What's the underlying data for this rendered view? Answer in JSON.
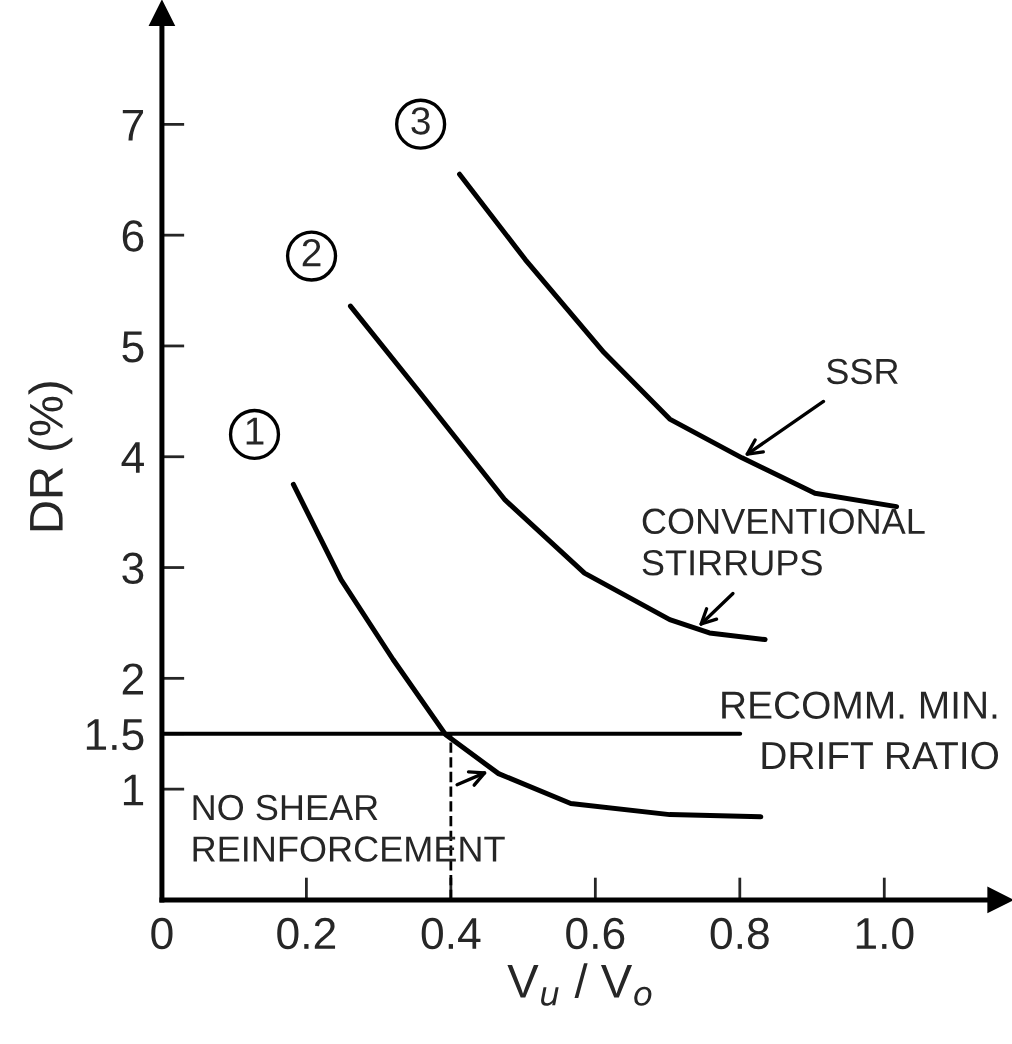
{
  "chart_data": {
    "type": "line",
    "xlabel": "V$_{u}$ / V$_{o}$",
    "ylabel": "DR (%)",
    "series": [
      {
        "name": "1",
        "color": "#000000",
        "x": [
          0.182,
          0.248,
          0.32,
          0.393,
          0.466,
          0.566,
          0.703,
          0.829
        ],
        "values": [
          3.75,
          2.89,
          2.17,
          1.49,
          1.14,
          0.87,
          0.77,
          0.75
        ]
      },
      {
        "name": "2",
        "color": "#000000",
        "x": [
          0.261,
          0.357,
          0.475,
          0.585,
          0.703,
          0.758,
          0.835
        ],
        "values": [
          5.36,
          4.58,
          3.61,
          2.95,
          2.53,
          2.41,
          2.35
        ]
      },
      {
        "name": "3",
        "color": "#000000",
        "x": [
          0.412,
          0.503,
          0.612,
          0.703,
          0.803,
          0.904,
          1.017
        ],
        "values": [
          6.55,
          5.78,
          4.94,
          4.34,
          3.99,
          3.67,
          3.55
        ]
      }
    ],
    "xlim": [
      0,
      1.16
    ],
    "ylim": [
      0,
      8.0
    ],
    "xticks": [
      0,
      0.2,
      0.4,
      0.6,
      0.8,
      {
        "value": 1.0,
        "label": "1.0"
      }
    ],
    "yticks": [
      1,
      1.5,
      2,
      3,
      4,
      5,
      6,
      7
    ],
    "ref_lines": [
      {
        "axis": "y",
        "value": 1.5,
        "label": "RECOMM. MIN.\nDRIFT RATIO",
        "color": "#000000",
        "line_style": "solid"
      },
      {
        "axis": "x",
        "value": 0.4,
        "label": null,
        "color": "#000000",
        "line_style": "dashed"
      }
    ],
    "annotations": [
      {
        "text": "SSR",
        "x": 0.803,
        "y": 3.99
      },
      {
        "text": "CONVENTIONAL\nSTIRRUPS",
        "x": 0.74,
        "y": 2.45
      },
      {
        "text": "NO SHEAR\nREINFORCEMENT",
        "x": 0.455,
        "y": 1.17
      }
    ],
    "grid": false,
    "legend": false,
    "marker": "none",
    "line_style": "solid"
  }
}
